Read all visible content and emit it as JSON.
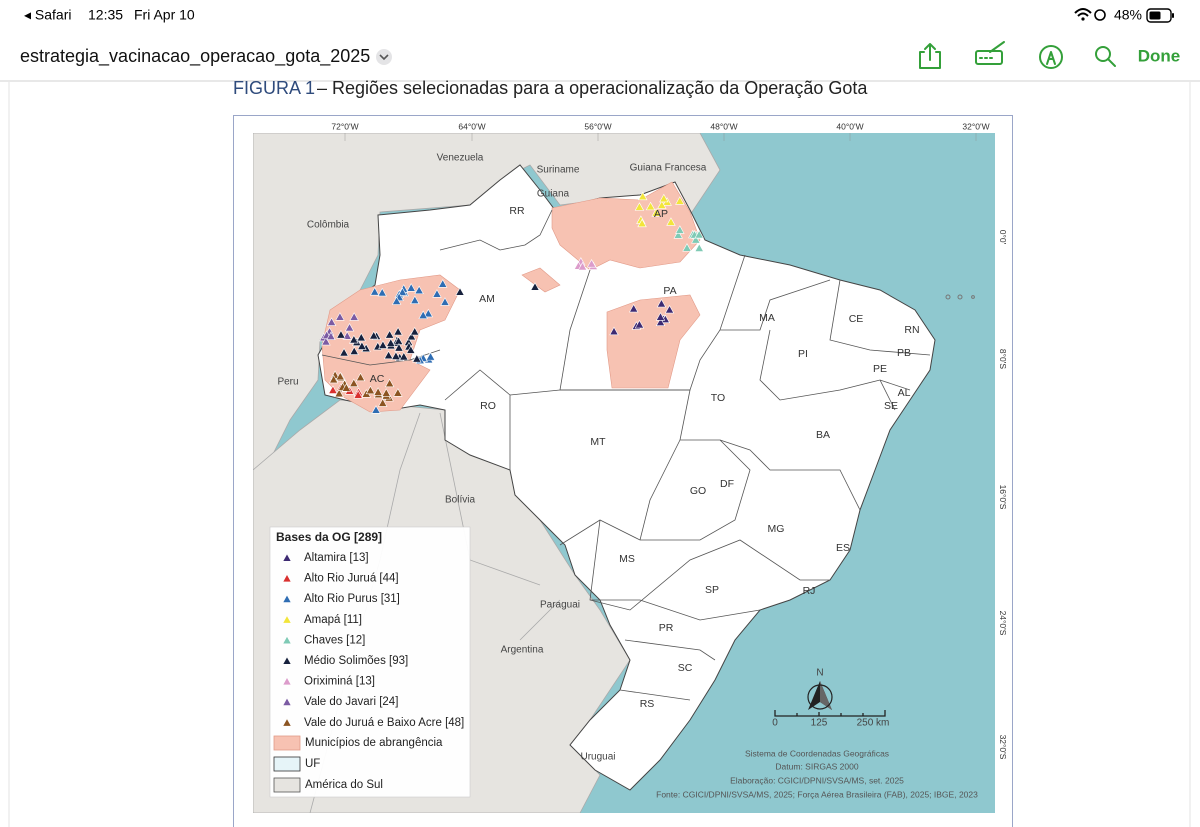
{
  "status_bar": {
    "back": "◂ Safari",
    "time": "12:35",
    "date": "Fri Apr 10",
    "battery": "48%"
  },
  "toolbar": {
    "document_title": "estrategia_vacinacao_operacao_gota_2025",
    "done": "Done"
  },
  "figure": {
    "label": "FIGURA 1",
    "caption": "– Regiões selecionadas para a operacionalização da Operação Gota"
  },
  "map": {
    "longitudes": [
      "72°0'W",
      "64°0'W",
      "56°0'W",
      "48°0'W",
      "40°0'W",
      "32°0'W"
    ],
    "latitudes": [
      "0°0'",
      "8°0'S",
      "16°0'S",
      "24°0'S",
      "32°0'S"
    ],
    "countries": [
      "Venezuela",
      "Suriname",
      "Guiana Francesa",
      "Guiana",
      "Colômbia",
      "Peru",
      "Bolívia",
      "Paraguai",
      "Argentina",
      "Uruguai"
    ],
    "states": [
      "RR",
      "AP",
      "AM",
      "PA",
      "MA",
      "CE",
      "RN",
      "PB",
      "PI",
      "PE",
      "AL",
      "SE",
      "AC",
      "RO",
      "TO",
      "BA",
      "MT",
      "GO",
      "DF",
      "MG",
      "ES",
      "MS",
      "SP",
      "RJ",
      "PR",
      "SC",
      "RS"
    ],
    "north": "N",
    "scale": [
      "0",
      "125",
      "250 km"
    ],
    "credits": [
      "Sistema de Coordenadas Geográficas",
      "Datum: SIRGAS 2000",
      "Elaboração: CGICI/DPNI/SVSA/MS, set. 2025",
      "Fonte: CGICI/DPNI/SVSA/MS, 2025; Força Aérea Brasileira (FAB), 2025; IBGE, 2023"
    ]
  },
  "legend": {
    "title": "Bases da OG [289]",
    "bases": [
      {
        "name": "Altamira [13]",
        "color": "#3d2a72"
      },
      {
        "name": "Alto Rio Juruá [44]",
        "color": "#d9302f"
      },
      {
        "name": "Alto Rio Purus [31]",
        "color": "#2f6db3"
      },
      {
        "name": "Amapá [11]",
        "color": "#f2e53a"
      },
      {
        "name": "Chaves [12]",
        "color": "#7fcab5"
      },
      {
        "name": "Médio Solimões [93]",
        "color": "#17213d"
      },
      {
        "name": "Oriximiná [13]",
        "color": "#dc9ccb"
      },
      {
        "name": "Vale do Javari [24]",
        "color": "#7b5ba3"
      },
      {
        "name": "Vale do Juruá e Baixo Acre [48]",
        "color": "#8b5421"
      }
    ],
    "areas": [
      "Municípios de abrangência",
      "UF",
      "América do Sul"
    ]
  }
}
